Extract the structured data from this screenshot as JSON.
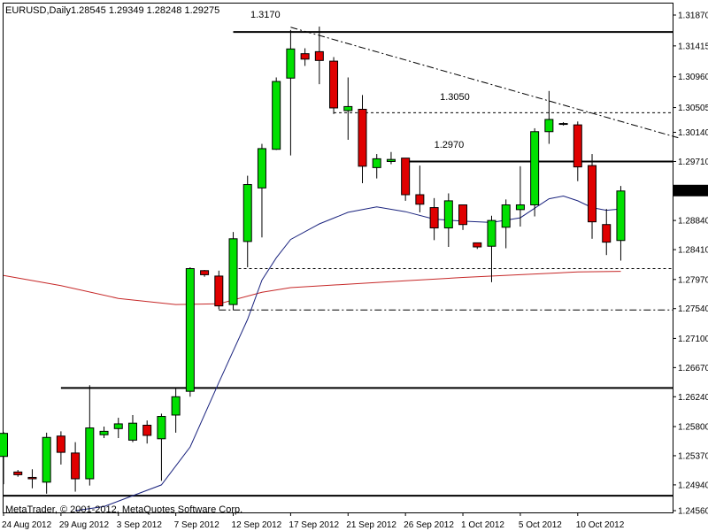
{
  "header": {
    "symbol_timeframe": "EURUSD,Daily",
    "ohlc": "1.28545 1.29349 1.28248 1.29275"
  },
  "footer": {
    "copyright": "MetaTrader, © 2001-2012, MetaQuotes Software Corp."
  },
  "current_price": "1.29275",
  "colors": {
    "bull": "#00e000",
    "bear": "#e00000",
    "ma_fast": "#1a237e",
    "ma_slow": "#c62828",
    "price_tag_bg": "#000000",
    "price_tag_fg": "#ffffff"
  },
  "chart_data": {
    "type": "candlestick",
    "ylim": [
      1.2456,
      1.3187
    ],
    "y_ticks": [
      "1.31870",
      "1.31415",
      "1.30960",
      "1.30505",
      "1.30140",
      "1.29710",
      "1.29275",
      "1.28840",
      "1.28410",
      "1.27970",
      "1.27540",
      "1.27100",
      "1.26670",
      "1.26240",
      "1.25800",
      "1.25370",
      "1.24940",
      "1.24560"
    ],
    "x_labels": [
      "24 Aug 2012",
      "29 Aug 2012",
      "3 Sep 2012",
      "7 Sep 2012",
      "12 Sep 2012",
      "17 Sep 2012",
      "21 Sep 2012",
      "26 Sep 2012",
      "1 Oct 2012",
      "5 Oct 2012",
      "10 Oct 2012"
    ],
    "x_label_bar_index": [
      0,
      4,
      8,
      12,
      16,
      20,
      24,
      28,
      32,
      36,
      40
    ],
    "candles": [
      {
        "o": 1.2536,
        "h": 1.2572,
        "l": 1.2495,
        "c": 1.257
      },
      {
        "o": 1.2513,
        "h": 1.2516,
        "l": 1.2506,
        "c": 1.2509
      },
      {
        "o": 1.2505,
        "h": 1.2517,
        "l": 1.2489,
        "c": 1.2503
      },
      {
        "o": 1.2498,
        "h": 1.2571,
        "l": 1.2481,
        "c": 1.2564
      },
      {
        "o": 1.2566,
        "h": 1.2573,
        "l": 1.2524,
        "c": 1.2542
      },
      {
        "o": 1.2541,
        "h": 1.2557,
        "l": 1.2484,
        "c": 1.2503
      },
      {
        "o": 1.2503,
        "h": 1.2641,
        "l": 1.2493,
        "c": 1.2578
      },
      {
        "o": 1.2568,
        "h": 1.258,
        "l": 1.2563,
        "c": 1.2573
      },
      {
        "o": 1.2577,
        "h": 1.2593,
        "l": 1.2563,
        "c": 1.2584
      },
      {
        "o": 1.256,
        "h": 1.2597,
        "l": 1.2557,
        "c": 1.2585
      },
      {
        "o": 1.2582,
        "h": 1.2589,
        "l": 1.2555,
        "c": 1.2567
      },
      {
        "o": 1.2562,
        "h": 1.2599,
        "l": 1.25,
        "c": 1.2595
      },
      {
        "o": 1.2597,
        "h": 1.2636,
        "l": 1.2571,
        "c": 1.2624
      },
      {
        "o": 1.2632,
        "h": 1.2815,
        "l": 1.2624,
        "c": 1.2813
      },
      {
        "o": 1.281,
        "h": 1.2811,
        "l": 1.2801,
        "c": 1.2804
      },
      {
        "o": 1.2802,
        "h": 1.281,
        "l": 1.2753,
        "c": 1.2758
      },
      {
        "o": 1.276,
        "h": 1.2867,
        "l": 1.2752,
        "c": 1.2857
      },
      {
        "o": 1.2853,
        "h": 1.295,
        "l": 1.2815,
        "c": 1.2937
      },
      {
        "o": 1.2932,
        "h": 1.2997,
        "l": 1.2859,
        "c": 1.299
      },
      {
        "o": 1.2989,
        "h": 1.3095,
        "l": 1.2988,
        "c": 1.3089
      },
      {
        "o": 1.3094,
        "h": 1.3165,
        "l": 1.298,
        "c": 1.3137
      },
      {
        "o": 1.313,
        "h": 1.3138,
        "l": 1.3112,
        "c": 1.3122
      },
      {
        "o": 1.3133,
        "h": 1.317,
        "l": 1.3085,
        "c": 1.312
      },
      {
        "o": 1.3119,
        "h": 1.3125,
        "l": 1.3041,
        "c": 1.305
      },
      {
        "o": 1.3046,
        "h": 1.3095,
        "l": 1.3003,
        "c": 1.3052
      },
      {
        "o": 1.3048,
        "h": 1.3069,
        "l": 1.2939,
        "c": 1.2964
      },
      {
        "o": 1.2962,
        "h": 1.2982,
        "l": 1.2946,
        "c": 1.2975
      },
      {
        "o": 1.2971,
        "h": 1.2985,
        "l": 1.2967,
        "c": 1.2974
      },
      {
        "o": 1.2976,
        "h": 1.2976,
        "l": 1.2913,
        "c": 1.2922
      },
      {
        "o": 1.2922,
        "h": 1.2965,
        "l": 1.2896,
        "c": 1.2908
      },
      {
        "o": 1.2903,
        "h": 1.2917,
        "l": 1.2855,
        "c": 1.2873
      },
      {
        "o": 1.2873,
        "h": 1.2924,
        "l": 1.2845,
        "c": 1.2913
      },
      {
        "o": 1.2907,
        "h": 1.2905,
        "l": 1.287,
        "c": 1.2878
      },
      {
        "o": 1.2851,
        "h": 1.2849,
        "l": 1.2842,
        "c": 1.2845
      },
      {
        "o": 1.2846,
        "h": 1.2891,
        "l": 1.2793,
        "c": 1.2884
      },
      {
        "o": 1.2874,
        "h": 1.2915,
        "l": 1.2843,
        "c": 1.2907
      },
      {
        "o": 1.29,
        "h": 1.2964,
        "l": 1.2875,
        "c": 1.2907
      },
      {
        "o": 1.2907,
        "h": 1.302,
        "l": 1.289,
        "c": 1.3015
      },
      {
        "o": 1.3015,
        "h": 1.3075,
        "l": 1.2997,
        "c": 1.3033
      },
      {
        "o": 1.3027,
        "h": 1.3029,
        "l": 1.3024,
        "c": 1.3027
      },
      {
        "o": 1.3025,
        "h": 1.303,
        "l": 1.2942,
        "c": 1.2963
      },
      {
        "o": 1.2965,
        "h": 1.2982,
        "l": 1.2857,
        "c": 1.2882
      },
      {
        "o": 1.2878,
        "h": 1.2901,
        "l": 1.2833,
        "c": 1.2852
      },
      {
        "o": 1.28545,
        "h": 1.29349,
        "l": 1.28248,
        "c": 1.29275
      }
    ],
    "ma_fast": [
      [
        5,
        1.2456
      ],
      [
        7,
        1.2462
      ],
      [
        9,
        1.2478
      ],
      [
        11,
        1.2494
      ],
      [
        13,
        1.255
      ],
      [
        15,
        1.2645
      ],
      [
        17,
        1.2738
      ],
      [
        18,
        1.2796
      ],
      [
        19,
        1.2829
      ],
      [
        20,
        1.2856
      ],
      [
        22,
        1.2879
      ],
      [
        24,
        1.2896
      ],
      [
        26,
        1.2904
      ],
      [
        28,
        1.2897
      ],
      [
        30,
        1.2886
      ],
      [
        32,
        1.2883
      ],
      [
        34,
        1.2881
      ],
      [
        36,
        1.2888
      ],
      [
        37,
        1.2902
      ],
      [
        38,
        1.2916
      ],
      [
        39,
        1.292
      ],
      [
        40,
        1.2913
      ],
      [
        41,
        1.2903
      ],
      [
        42,
        1.2899
      ],
      [
        43,
        1.2901
      ]
    ],
    "ma_slow": [
      [
        0,
        1.2803
      ],
      [
        4,
        1.2788
      ],
      [
        8,
        1.2769
      ],
      [
        12,
        1.276
      ],
      [
        15,
        1.2761
      ],
      [
        18,
        1.2778
      ],
      [
        20,
        1.2785
      ],
      [
        24,
        1.279
      ],
      [
        28,
        1.2795
      ],
      [
        32,
        1.28
      ],
      [
        36,
        1.2804
      ],
      [
        40,
        1.2808
      ],
      [
        43,
        1.2809
      ]
    ],
    "horizontal_lines": [
      {
        "price": 1.3162,
        "style": "solid",
        "from_bar": 16,
        "to_end": true
      },
      {
        "price": 1.2971,
        "style": "solid",
        "from_bar": 28,
        "to_end": true
      },
      {
        "price": 1.2637,
        "style": "solid",
        "from_bar": 4,
        "to_end": true
      },
      {
        "price": 1.2478,
        "style": "solid",
        "from_bar": 0,
        "to_end": true
      },
      {
        "price": 1.3043,
        "style": "dashed",
        "from_bar": 23,
        "to_end": true
      },
      {
        "price": 1.2813,
        "style": "dashed",
        "from_bar": 16,
        "to_end": true
      },
      {
        "price": 1.2752,
        "style": "dashdot",
        "from_bar": 15,
        "to_end": true
      }
    ],
    "trendline": {
      "from": [
        20,
        1.3169
      ],
      "to": [
        47,
        1.3006
      ],
      "style": "dashdot"
    },
    "annotations": [
      {
        "text": "1.3170",
        "bar": 17.2,
        "price": 1.3183
      },
      {
        "text": "1.3050",
        "bar": 30.4,
        "price": 1.3062
      },
      {
        "text": "1.2970",
        "bar": 30.0,
        "price": 1.2991
      }
    ]
  }
}
